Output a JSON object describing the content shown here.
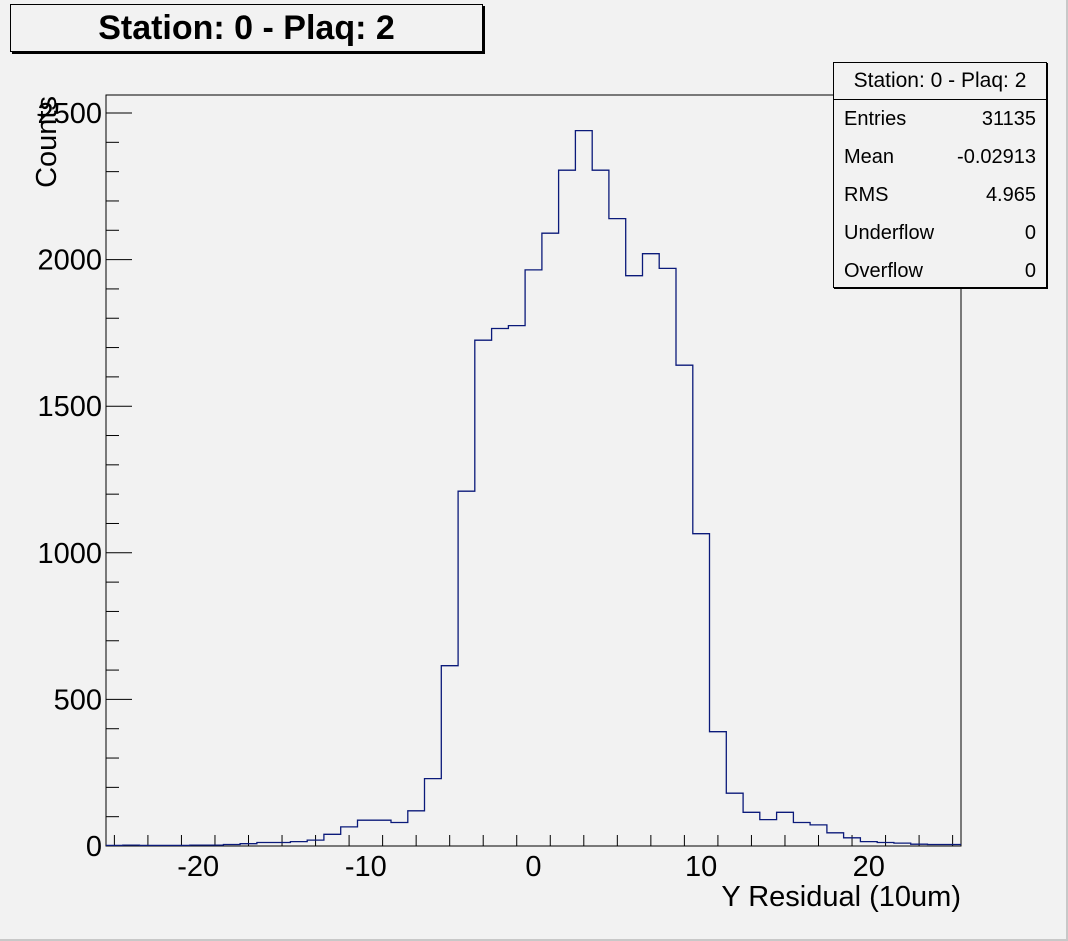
{
  "title": "Station: 0 - Plaq: 2",
  "stats": {
    "title": "Station: 0 - Plaq: 2",
    "rows": [
      {
        "label": "Entries",
        "value": "31135"
      },
      {
        "label": "Mean",
        "value": "-0.02913"
      },
      {
        "label": "RMS",
        "value": "4.965"
      },
      {
        "label": "Underflow",
        "value": "0"
      },
      {
        "label": "Overflow",
        "value": "0"
      }
    ]
  },
  "colors": {
    "line": "#0b1a7a",
    "background": "#f2f2f2",
    "axis": "#000000"
  },
  "chart_data": {
    "type": "histogram",
    "title": "Station: 0 - Plaq: 2",
    "xlabel": "Y Residual (10um)",
    "ylabel": "Counts",
    "xlim": [
      -25.5,
      25.5
    ],
    "ylim": [
      0,
      2500
    ],
    "xticks": [
      -20,
      -10,
      0,
      10,
      20
    ],
    "yticks": [
      0,
      500,
      1000,
      1500,
      2000,
      2500
    ],
    "bin_edges_start": -25.5,
    "bin_width": 1,
    "values": [
      2,
      3,
      2,
      2,
      2,
      3,
      3,
      5,
      8,
      12,
      12,
      15,
      20,
      40,
      65,
      88,
      88,
      80,
      120,
      230,
      615,
      1210,
      1725,
      1765,
      1775,
      1965,
      2090,
      2305,
      2440,
      2305,
      2140,
      1945,
      2020,
      1970,
      1640,
      1065,
      390,
      180,
      115,
      90,
      115,
      80,
      72,
      45,
      28,
      15,
      12,
      10,
      6,
      5,
      5
    ]
  }
}
